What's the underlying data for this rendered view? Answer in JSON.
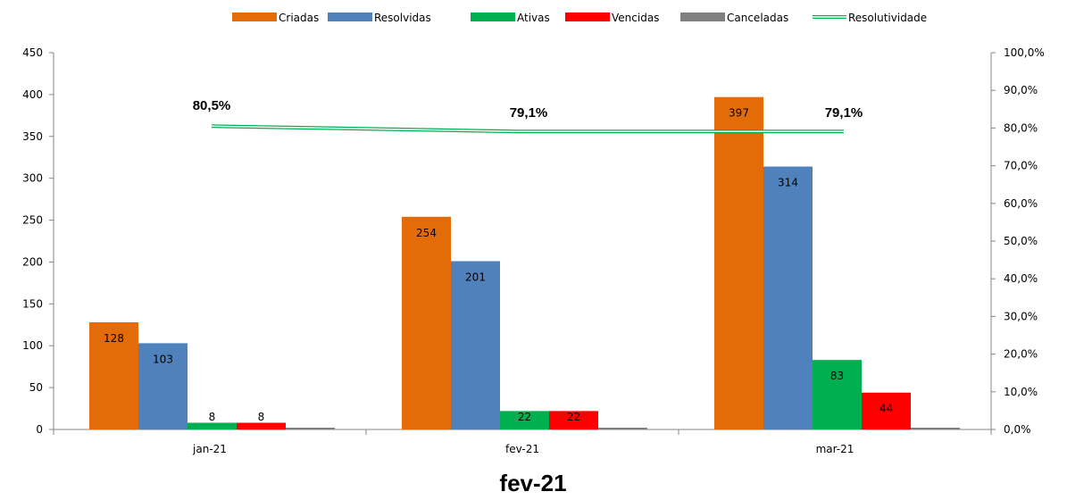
{
  "chart_data": {
    "type": "bar",
    "title": "fev-21",
    "categories": [
      "jan-21",
      "fev-21",
      "mar-21"
    ],
    "series": [
      {
        "name": "Criadas",
        "color": "#E36C09",
        "values": [
          128,
          254,
          397
        ]
      },
      {
        "name": "Resolvidas",
        "color": "#4F81BD",
        "values": [
          103,
          201,
          314
        ]
      },
      {
        "name": "Ativas",
        "color": "#00B050",
        "values": [
          8,
          22,
          83
        ]
      },
      {
        "name": "Vencidas",
        "color": "#FF0000",
        "values": [
          8,
          22,
          44
        ]
      },
      {
        "name": "Canceladas",
        "color": "#808080",
        "values": [
          0,
          0,
          0
        ]
      }
    ],
    "line_series": {
      "name": "Resolutividade",
      "color": "#00B050",
      "axis": "right",
      "values": [
        80.5,
        79.1,
        79.1
      ],
      "labels": [
        "80,5%",
        "79,1%",
        "79,1%"
      ]
    },
    "ylim": [
      0,
      450
    ],
    "yticks": [
      "0",
      "50",
      "100",
      "150",
      "200",
      "250",
      "300",
      "350",
      "400",
      "450"
    ],
    "y2lim": [
      0,
      100
    ],
    "y2ticks": [
      "0,0%",
      "10,0%",
      "20,0%",
      "30,0%",
      "40,0%",
      "50,0%",
      "60,0%",
      "70,0%",
      "80,0%",
      "90,0%",
      "100,0%"
    ],
    "legend_position": "top",
    "grid": false
  }
}
